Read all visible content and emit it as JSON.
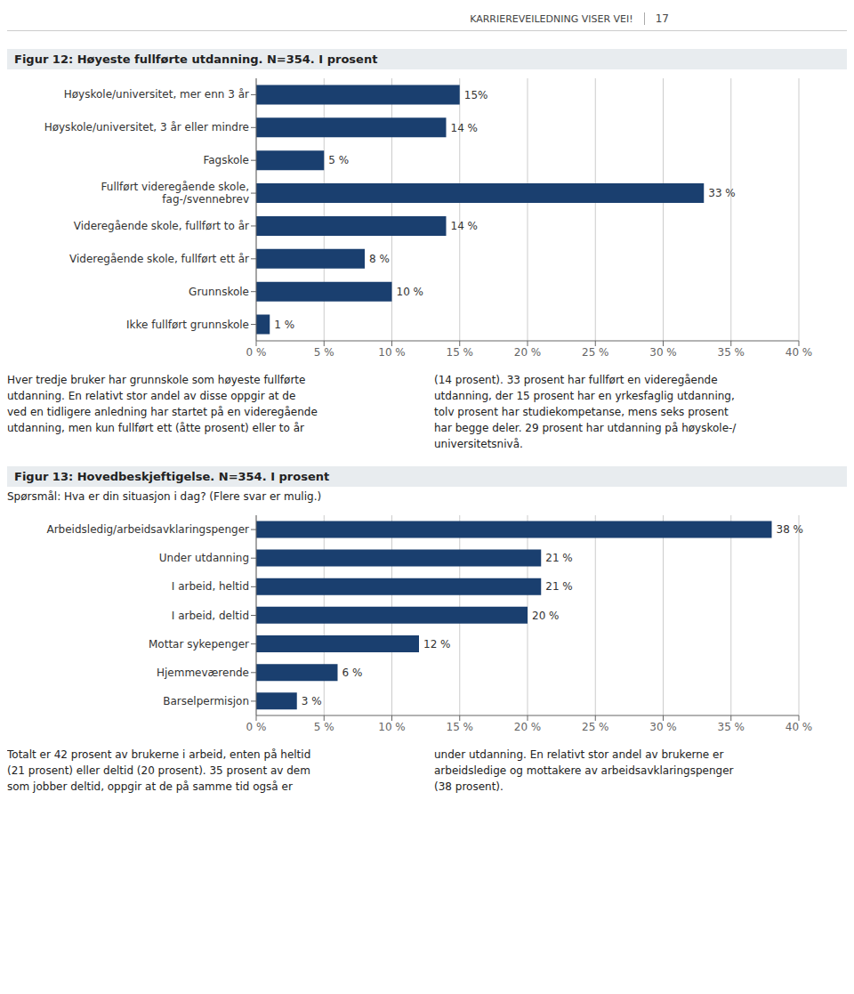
{
  "annotations": [
    "KARRIEREVEILEDNING VISER VEI!",
    "17"
  ],
  "chart_data": [
    {
      "type": "bar",
      "orientation": "horizontal",
      "title": "Figur 12: Høyeste fullførte utdanning. N=354. I prosent",
      "categories": [
        "Høyskole/universitet, mer enn 3 år",
        "Høyskole/universitet, 3 år eller mindre",
        "Fagskole",
        "Fullført videregående skole,\nfag-/svennebrev",
        "Videregående skole, fullført to år",
        "Videregående skole, fullført ett år",
        "Grunnskole",
        "Ikke fullført grunnskole"
      ],
      "values": [
        15,
        14,
        5,
        33,
        14,
        8,
        10,
        1
      ],
      "value_labels": [
        "15%",
        "14 %",
        "5 %",
        "33 %",
        "14 %",
        "8 %",
        "10 %",
        "1 %"
      ],
      "data_labels": true,
      "color": "#1a3f6f",
      "xlim": [
        0,
        40
      ],
      "xticks": [
        {
          "value": 0,
          "label": "0 %"
        },
        {
          "value": 5,
          "label": "5 %"
        },
        {
          "value": 10,
          "label": "10 %"
        },
        {
          "value": 15,
          "label": "15 %"
        },
        {
          "value": 20,
          "label": "20 %"
        },
        {
          "value": 25,
          "label": "25 %"
        },
        {
          "value": 30,
          "label": "30 %"
        },
        {
          "value": 35,
          "label": "35 %"
        },
        {
          "value": 40,
          "label": "40 %"
        }
      ],
      "grid": true,
      "annotations": [
        "Hver tredje bruker har grunnskole som høyeste fullførte\nutdanning. En relativt stor andel av disse oppgir at de\nved en tidligere anledning har startet på en videregående\nutdanning, men kun fullført ett (åtte prosent) eller to år",
        "(14 prosent). 33 prosent har fullført en videregående\nutdanning, der 15 prosent har en yrkesfaglig utdanning,\ntolv prosent har studiekompetanse, mens seks prosent\nhar begge deler. 29 prosent har utdanning på høyskole-/\nuniversitetsnivå."
      ]
    },
    {
      "type": "bar",
      "orientation": "horizontal",
      "title": "Figur 13: Hovedbeskjeftigelse. N=354. I prosent",
      "subtitle": "Spørsmål: Hva er din situasjon i dag? (Flere svar er mulig.)",
      "categories": [
        "Arbeidsledig/arbeidsavklaringspenger",
        "Under utdanning",
        "I arbeid, heltid",
        "I arbeid, deltid",
        "Mottar sykepenger",
        "Hjemmeværende",
        "Barselpermisjon"
      ],
      "values": [
        38,
        21,
        21,
        20,
        12,
        6,
        3
      ],
      "value_labels": [
        "38 %",
        "21 %",
        "21 %",
        "20 %",
        "12 %",
        "6 %",
        "3 %"
      ],
      "data_labels": true,
      "color": "#1a3f6f",
      "xlim": [
        0,
        40
      ],
      "xticks": [
        {
          "value": 0,
          "label": "0 %"
        },
        {
          "value": 5,
          "label": "5 %"
        },
        {
          "value": 10,
          "label": "10 %"
        },
        {
          "value": 15,
          "label": "15 %"
        },
        {
          "value": 20,
          "label": "20 %"
        },
        {
          "value": 25,
          "label": "25 %"
        },
        {
          "value": 30,
          "label": "30 %"
        },
        {
          "value": 35,
          "label": "35 %"
        },
        {
          "value": 40,
          "label": "40 %"
        }
      ],
      "grid": true,
      "annotations": [
        "Totalt er 42 prosent av brukerne i arbeid, enten på heltid\n(21 prosent) eller deltid (20 prosent). 35 prosent av dem\nsom jobber deltid, oppgir at de på samme tid også er",
        "under utdanning. En relativt stor andel av brukerne er\narbeidsledige og mottakere av arbeidsavklaringspenger\n(38 prosent)."
      ]
    }
  ]
}
